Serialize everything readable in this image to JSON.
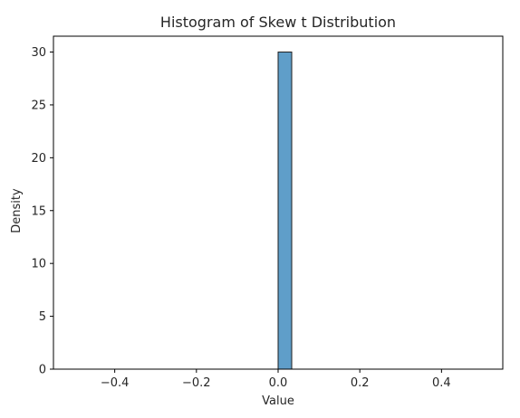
{
  "chart_data": {
    "type": "bar",
    "title": "Histogram of Skew t Distribution",
    "xlabel": "Value",
    "ylabel": "Density",
    "xlim": [
      -0.55,
      0.55
    ],
    "ylim": [
      0,
      31.5
    ],
    "x_ticks": [
      -0.4,
      -0.2,
      0.0,
      0.2,
      0.4
    ],
    "x_tick_labels": [
      "−0.4",
      "−0.2",
      "0.0",
      "0.2",
      "0.4"
    ],
    "y_ticks": [
      0,
      5,
      10,
      15,
      20,
      25,
      30
    ],
    "y_tick_labels": [
      "0",
      "5",
      "10",
      "15",
      "20",
      "25",
      "30"
    ],
    "bins": [
      {
        "x0": -0.0,
        "x1": 0.0333,
        "value": 30
      }
    ],
    "bar_color": "#5f9ec9",
    "edge_color": "#1f1f1f",
    "grid": false,
    "legend": "none"
  }
}
